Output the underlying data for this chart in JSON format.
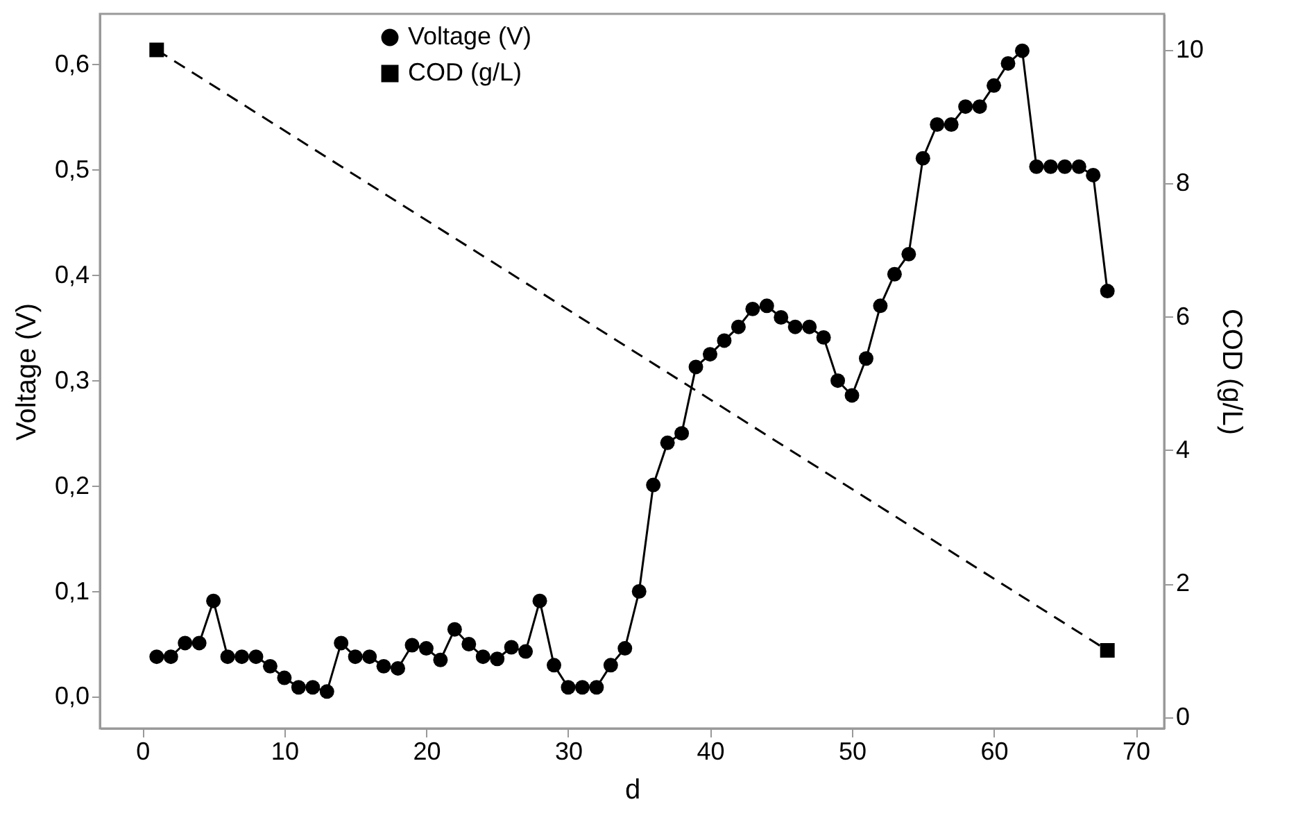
{
  "chart_data": {
    "type": "line",
    "xlabel": "d",
    "ylabel": "Voltage (V)",
    "y2label": "COD (g/L)",
    "xlim": [
      -3,
      72
    ],
    "xticks": [
      0,
      10,
      20,
      30,
      40,
      50,
      60,
      70
    ],
    "ylim": [
      -0.03,
      0.648
    ],
    "yticks": [
      {
        "value": 0,
        "label": "0,0"
      },
      {
        "value": 0.1,
        "label": "0,1"
      },
      {
        "value": 0.2,
        "label": "0,2"
      },
      {
        "value": 0.3,
        "label": "0,3"
      },
      {
        "value": 0.4,
        "label": "0,4"
      },
      {
        "value": 0.5,
        "label": "0,5"
      },
      {
        "value": 0.6,
        "label": "0,6"
      }
    ],
    "y2lim": [
      -0.17,
      10.54
    ],
    "y2ticks": [
      0,
      2,
      4,
      6,
      8,
      10
    ],
    "grid": false,
    "legend": "top",
    "series": [
      {
        "name": "Voltage (V)",
        "color": "#000000",
        "marker": "circle",
        "line_style": "solid",
        "x": [
          1,
          2,
          3,
          4,
          5,
          6,
          7,
          8,
          9,
          10,
          11,
          12,
          13,
          14,
          15,
          16,
          17,
          18,
          19,
          20,
          21,
          22,
          23,
          24,
          25,
          26,
          27,
          28,
          29,
          30,
          31,
          32,
          33,
          34,
          35,
          36,
          37,
          38,
          39,
          40,
          41,
          42,
          43,
          44,
          45,
          46,
          47,
          48,
          49,
          50,
          51,
          52,
          53,
          54,
          55,
          56,
          57,
          58,
          59,
          60,
          61,
          62,
          63,
          64,
          65,
          66,
          67,
          68
        ],
        "values": [
          0.038,
          0.038,
          0.051,
          0.051,
          0.091,
          0.038,
          0.038,
          0.038,
          0.029,
          0.018,
          0.009,
          0.009,
          0.005,
          0.051,
          0.038,
          0.038,
          0.029,
          0.027,
          0.049,
          0.046,
          0.035,
          0.064,
          0.05,
          0.038,
          0.036,
          0.047,
          0.043,
          0.091,
          0.03,
          0.009,
          0.009,
          0.009,
          0.03,
          0.046,
          0.1,
          0.201,
          0.241,
          0.25,
          0.313,
          0.325,
          0.338,
          0.351,
          0.368,
          0.371,
          0.36,
          0.351,
          0.351,
          0.341,
          0.3,
          0.286,
          0.321,
          0.371,
          0.401,
          0.42,
          0.511,
          0.543,
          0.543,
          0.56,
          0.56,
          0.58,
          0.601,
          0.613,
          0.503,
          0.503,
          0.503,
          0.503,
          0.495,
          0.385
        ]
      },
      {
        "name": "COD (g/L)",
        "color": "#000000",
        "marker": "square",
        "line_style": "dashed",
        "axis": "y2",
        "x": [
          1,
          68
        ],
        "values": [
          10,
          1
        ]
      }
    ]
  }
}
